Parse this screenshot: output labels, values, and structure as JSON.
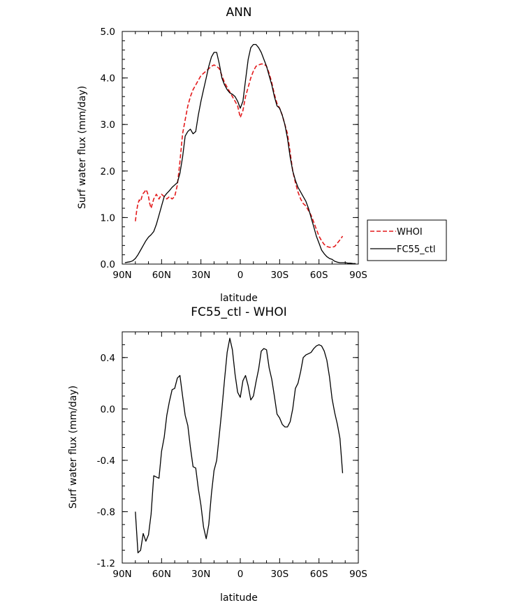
{
  "chart_data": [
    {
      "type": "line",
      "title": "ANN",
      "xlabel": "latitude",
      "ylabel": "Surf water flux (mm/day)",
      "xlim": [
        90,
        -90
      ],
      "ylim": [
        0.0,
        5.0
      ],
      "x_ticks": [
        90,
        60,
        30,
        0,
        -30,
        -60,
        -90
      ],
      "x_tick_labels": [
        "90N",
        "60N",
        "30N",
        "0",
        "30S",
        "60S",
        "90S"
      ],
      "y_ticks": [
        0,
        1,
        2,
        3,
        4,
        5
      ],
      "y_tick_labels": [
        "0.0",
        "1.0",
        "2.0",
        "3.0",
        "4.0",
        "5.0"
      ],
      "legend": "right",
      "series": [
        {
          "name": "WHOI",
          "color": "#e31a1c",
          "dash": "dashed",
          "x": [
            80,
            79,
            78,
            77,
            76,
            75,
            74,
            73,
            72,
            71,
            70,
            69,
            68,
            67,
            66,
            65,
            64,
            63,
            62,
            61,
            60,
            58,
            56,
            54,
            52,
            50,
            48,
            46,
            44,
            42,
            40,
            38,
            36,
            34,
            32,
            30,
            28,
            26,
            24,
            22,
            20,
            18,
            16,
            14,
            12,
            10,
            8,
            6,
            4,
            2,
            0,
            -2,
            -4,
            -6,
            -8,
            -10,
            -12,
            -14,
            -16,
            -18,
            -20,
            -22,
            -24,
            -26,
            -28,
            -30,
            -32,
            -34,
            -36,
            -38,
            -40,
            -42,
            -44,
            -46,
            -48,
            -50,
            -52,
            -54,
            -56,
            -58,
            -60,
            -62,
            -64,
            -66,
            -68,
            -70,
            -72,
            -74,
            -76,
            -78
          ],
          "y": [
            0.92,
            1.15,
            1.3,
            1.38,
            1.35,
            1.45,
            1.52,
            1.55,
            1.6,
            1.55,
            1.45,
            1.3,
            1.2,
            1.3,
            1.4,
            1.45,
            1.5,
            1.45,
            1.4,
            1.45,
            1.5,
            1.45,
            1.4,
            1.45,
            1.4,
            1.45,
            1.7,
            2.2,
            2.8,
            3.1,
            3.4,
            3.6,
            3.75,
            3.85,
            3.95,
            4.05,
            4.1,
            4.15,
            4.2,
            4.25,
            4.28,
            4.25,
            4.2,
            4.05,
            3.9,
            3.8,
            3.7,
            3.6,
            3.5,
            3.4,
            3.15,
            3.3,
            3.6,
            3.8,
            4.0,
            4.15,
            4.25,
            4.28,
            4.3,
            4.3,
            4.25,
            4.1,
            3.9,
            3.65,
            3.45,
            3.35,
            3.2,
            3.0,
            2.8,
            2.4,
            2.0,
            1.75,
            1.55,
            1.4,
            1.3,
            1.25,
            1.15,
            1.05,
            0.9,
            0.75,
            0.6,
            0.5,
            0.42,
            0.38,
            0.36,
            0.36,
            0.38,
            0.45,
            0.52,
            0.6
          ]
        },
        {
          "name": "FC55_ctl",
          "color": "#000000",
          "dash": "solid",
          "x": [
            88,
            86,
            84,
            82,
            80,
            78,
            76,
            74,
            72,
            70,
            68,
            66,
            64,
            62,
            60,
            58,
            56,
            54,
            52,
            50,
            48,
            46,
            44,
            42,
            40,
            38,
            36,
            34,
            32,
            30,
            28,
            26,
            24,
            22,
            20,
            18,
            16,
            14,
            12,
            10,
            8,
            6,
            4,
            2,
            0,
            -2,
            -4,
            -6,
            -8,
            -10,
            -12,
            -14,
            -16,
            -18,
            -20,
            -22,
            -24,
            -26,
            -28,
            -30,
            -32,
            -34,
            -36,
            -38,
            -40,
            -42,
            -44,
            -46,
            -48,
            -50,
            -52,
            -54,
            -56,
            -58,
            -60,
            -62,
            -64,
            -66,
            -68,
            -70,
            -72,
            -74,
            -76,
            -78,
            -80,
            -82,
            -84,
            -86,
            -88
          ],
          "y": [
            0.03,
            0.04,
            0.05,
            0.07,
            0.12,
            0.2,
            0.3,
            0.4,
            0.5,
            0.58,
            0.63,
            0.7,
            0.85,
            1.05,
            1.25,
            1.45,
            1.52,
            1.58,
            1.65,
            1.7,
            1.75,
            1.95,
            2.3,
            2.75,
            2.85,
            2.9,
            2.8,
            2.85,
            3.2,
            3.5,
            3.75,
            4.0,
            4.25,
            4.45,
            4.55,
            4.55,
            4.3,
            4.0,
            3.85,
            3.75,
            3.68,
            3.65,
            3.6,
            3.5,
            3.35,
            3.5,
            3.95,
            4.4,
            4.65,
            4.72,
            4.72,
            4.65,
            4.55,
            4.4,
            4.25,
            4.05,
            3.85,
            3.6,
            3.4,
            3.35,
            3.2,
            3.0,
            2.7,
            2.3,
            2.0,
            1.8,
            1.65,
            1.55,
            1.45,
            1.35,
            1.2,
            1.0,
            0.8,
            0.6,
            0.45,
            0.3,
            0.22,
            0.16,
            0.12,
            0.1,
            0.06,
            0.04,
            0.03,
            0.03,
            0.03,
            0.02,
            0.02,
            0.01,
            0.01
          ]
        }
      ]
    },
    {
      "type": "line",
      "title": "FC55_ctl - WHOI",
      "xlabel": "latitude",
      "ylabel": "Surf water flux (mm/day)",
      "xlim": [
        90,
        -90
      ],
      "ylim": [
        -1.2,
        0.6
      ],
      "x_ticks": [
        90,
        60,
        30,
        0,
        -30,
        -60,
        -90
      ],
      "x_tick_labels": [
        "90N",
        "60N",
        "30N",
        "0",
        "30S",
        "60S",
        "90S"
      ],
      "y_ticks": [
        -1.2,
        -0.8,
        -0.4,
        0.0,
        0.4
      ],
      "y_tick_labels": [
        "-1.2",
        "-0.8",
        "-0.4",
        "0.0",
        "0.4"
      ],
      "series": [
        {
          "color": "#000000",
          "dash": "solid",
          "x": [
            80,
            78,
            76,
            74,
            72,
            70,
            68,
            66,
            64,
            62,
            60,
            58,
            56,
            54,
            52,
            50,
            48,
            46,
            44,
            42,
            40,
            38,
            36,
            34,
            32,
            30,
            28,
            26,
            24,
            22,
            20,
            18,
            16,
            14,
            12,
            10,
            8,
            6,
            4,
            2,
            0,
            -2,
            -4,
            -6,
            -8,
            -10,
            -12,
            -14,
            -16,
            -18,
            -20,
            -22,
            -24,
            -26,
            -28,
            -30,
            -32,
            -34,
            -36,
            -38,
            -40,
            -42,
            -44,
            -46,
            -48,
            -50,
            -52,
            -54,
            -56,
            -58,
            -60,
            -62,
            -64,
            -66,
            -68,
            -70,
            -72,
            -74,
            -76,
            -78
          ],
          "y": [
            -0.8,
            -1.12,
            -1.1,
            -0.97,
            -1.03,
            -0.98,
            -0.82,
            -0.52,
            -0.53,
            -0.54,
            -0.33,
            -0.22,
            -0.05,
            0.06,
            0.15,
            0.16,
            0.24,
            0.26,
            0.1,
            -0.05,
            -0.13,
            -0.3,
            -0.45,
            -0.46,
            -0.62,
            -0.75,
            -0.92,
            -1.01,
            -0.9,
            -0.66,
            -0.48,
            -0.4,
            -0.2,
            0.0,
            0.23,
            0.44,
            0.55,
            0.46,
            0.27,
            0.13,
            0.09,
            0.22,
            0.26,
            0.18,
            0.07,
            0.1,
            0.21,
            0.31,
            0.45,
            0.47,
            0.46,
            0.32,
            0.23,
            0.1,
            -0.04,
            -0.07,
            -0.12,
            -0.14,
            -0.14,
            -0.1,
            0.0,
            0.16,
            0.2,
            0.29,
            0.4,
            0.42,
            0.43,
            0.44,
            0.47,
            0.49,
            0.5,
            0.49,
            0.45,
            0.38,
            0.25,
            0.08,
            -0.03,
            -0.12,
            -0.23,
            -0.5
          ]
        }
      ]
    }
  ]
}
